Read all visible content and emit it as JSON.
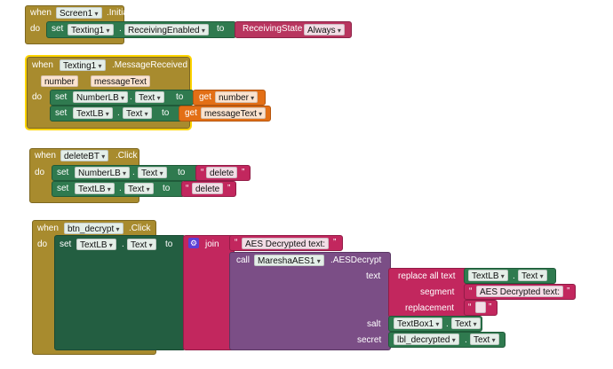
{
  "block1": {
    "when": "when",
    "component": "Screen1",
    "event": ".Initialize",
    "do": "do",
    "set": "set",
    "target": "Texting1",
    "prop": "ReceivingEnabled",
    "to": "to",
    "enum_name": "ReceivingState",
    "enum_value": "Always"
  },
  "block2": {
    "when": "when",
    "component": "Texting1",
    "event": ".MessageReceived",
    "param1": "number",
    "param2": "messageText",
    "do": "do",
    "row1": {
      "set": "set",
      "target": "NumberLB",
      "prop": "Text",
      "to": "to",
      "get": "get",
      "var": "number"
    },
    "row2": {
      "set": "set",
      "target": "TextLB",
      "prop": "Text",
      "to": "to",
      "get": "get",
      "var": "messageText"
    }
  },
  "block3": {
    "when": "when",
    "component": "deleteBT",
    "event": ".Click",
    "do": "do",
    "row1": {
      "set": "set",
      "target": "NumberLB",
      "prop": "Text",
      "to": "to",
      "value": "delete"
    },
    "row2": {
      "set": "set",
      "target": "TextLB",
      "prop": "Text",
      "to": "to",
      "value": "delete"
    }
  },
  "block4": {
    "when": "when",
    "component": "btn_decrypt",
    "event": ".Click",
    "do": "do",
    "set": "set",
    "target": "TextLB",
    "prop": "Text",
    "to": "to",
    "join": "join",
    "join_text": "AES Decrypted text:",
    "call": "call",
    "call_component": "MareshaAES1",
    "call_method": ".AESDecrypt",
    "text_label": "text",
    "replace_label": "replace all text",
    "replace_target": "TextLB",
    "replace_prop": "Text",
    "segment_label": "segment",
    "segment_value": "AES Decrypted text:",
    "replacement_label": "replacement",
    "replacement_value": "",
    "salt_label": "salt",
    "salt_target": "TextBox1",
    "salt_prop": "Text",
    "secret_label": "secret",
    "secret_target": "lbl_decrypted",
    "secret_prop": "Text"
  }
}
